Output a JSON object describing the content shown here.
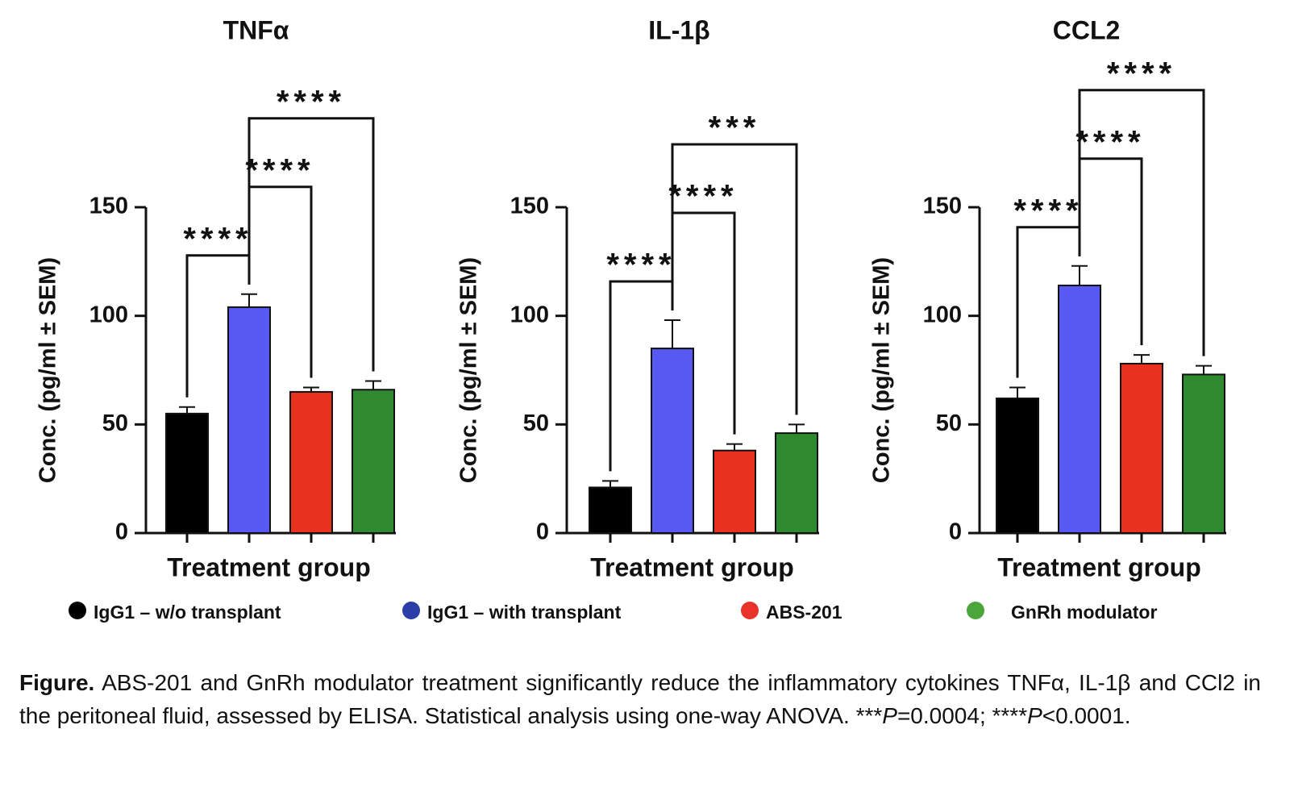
{
  "chart_data": [
    {
      "type": "bar",
      "title": "TNFα",
      "ylabel": "Conc.  (pg/ml ± SEM)",
      "xlabel": "Treatment group",
      "values": [
        55,
        104,
        65,
        66
      ],
      "errors": [
        3,
        6,
        2,
        4
      ],
      "colors": [
        "#000000",
        "#5858f2",
        "#e8321e",
        "#2f8a2f"
      ],
      "ylim": [
        0,
        150
      ],
      "yticks": [
        0,
        50,
        100,
        150
      ],
      "comparisons": [
        {
          "between": [
            0,
            1
          ],
          "label": "****"
        },
        {
          "between": [
            1,
            2
          ],
          "label": "****"
        },
        {
          "between": [
            1,
            3
          ],
          "label": "****"
        }
      ]
    },
    {
      "type": "bar",
      "title": "IL-1β",
      "ylabel": "Conc.  (pg/ml ± SEM)",
      "xlabel": "Treatment group",
      "values": [
        21,
        85,
        38,
        46
      ],
      "errors": [
        3,
        13,
        3,
        4
      ],
      "colors": [
        "#000000",
        "#5858f2",
        "#e8321e",
        "#2f8a2f"
      ],
      "ylim": [
        0,
        150
      ],
      "yticks": [
        0,
        50,
        100,
        150
      ],
      "comparisons": [
        {
          "between": [
            0,
            1
          ],
          "label": "****"
        },
        {
          "between": [
            1,
            2
          ],
          "label": "****"
        },
        {
          "between": [
            1,
            3
          ],
          "label": "***"
        }
      ]
    },
    {
      "type": "bar",
      "title": "CCL2",
      "ylabel": "Conc.  (pg/ml ± SEM)",
      "xlabel": "Treatment group",
      "values": [
        62,
        114,
        78,
        73
      ],
      "errors": [
        5,
        9,
        4,
        4
      ],
      "colors": [
        "#000000",
        "#5858f2",
        "#e8321e",
        "#2f8a2f"
      ],
      "ylim": [
        0,
        150
      ],
      "yticks": [
        0,
        50,
        100,
        150
      ],
      "comparisons": [
        {
          "between": [
            0,
            1
          ],
          "label": "****"
        },
        {
          "between": [
            1,
            2
          ],
          "label": "****"
        },
        {
          "between": [
            1,
            3
          ],
          "label": "****"
        }
      ]
    }
  ],
  "legend": {
    "labels": [
      "IgG1 – w/o transplant",
      "IgG1 – with transplant",
      "ABS-201",
      "GnRh modulator"
    ],
    "colors": [
      "#000000",
      "#2b3ea8",
      "#e8322a",
      "#4aa53a"
    ]
  },
  "caption": {
    "label": "Figure.",
    "parts": [
      "ABS-201 and GnRh modulator treatment significantly reduce the inflammatory cytokines TNFα, IL-1β and CCl2 in the peritoneal fluid, assessed by ELISA. Statistical analysis using one-way ANOVA. ***",
      "P",
      "=0.0004; ****",
      "P",
      "<0.0001."
    ]
  }
}
